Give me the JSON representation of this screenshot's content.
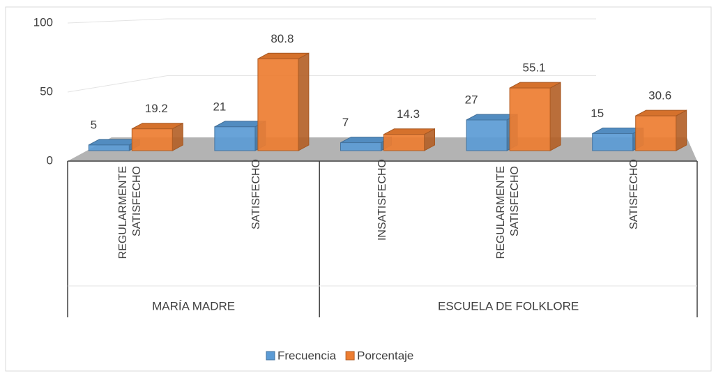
{
  "chart_data": {
    "type": "bar3d",
    "groups": [
      {
        "name": "MARÍA MADRE",
        "size": 2
      },
      {
        "name": "ESCUELA DE FOLKLORE",
        "size": 3
      }
    ],
    "categories": [
      "REGULARMENTE SATISFECHO",
      "SATISFECHO",
      "INSATISFECHO",
      "REGULARMENTE SATISFECHO",
      "SATISFECHO"
    ],
    "series": [
      {
        "name": "Frecuencia",
        "color": "#5b9bd5",
        "values": [
          5,
          21,
          7,
          27,
          15
        ]
      },
      {
        "name": "Porcentaje",
        "color": "#ed7d31",
        "values": [
          19.2,
          80.8,
          14.3,
          55.1,
          30.6
        ]
      }
    ],
    "ylim": [
      0,
      100
    ],
    "yticks": [
      0,
      50,
      100
    ],
    "grid": true,
    "legend": "bottom"
  }
}
